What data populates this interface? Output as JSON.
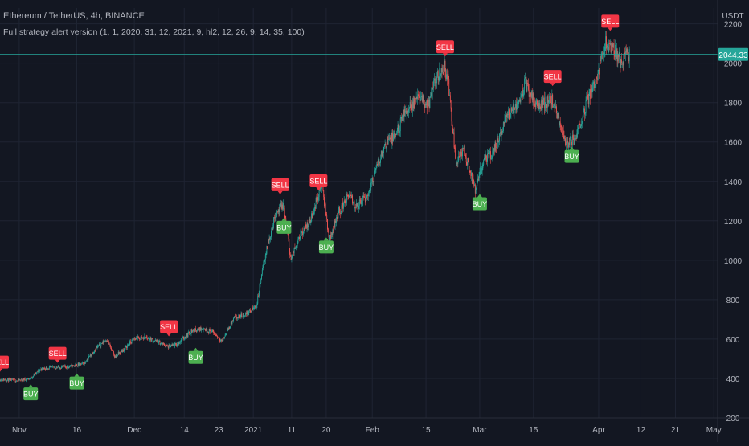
{
  "legend": {
    "symbol_line": "Ethereum / TetherUS, 4h, BINANCE",
    "indicator_line": "Full strategy alert version (1, 1, 2020, 31, 12, 2021, 9, hl2, 12, 26, 9, 14, 35, 100)"
  },
  "currency_label": "USDT",
  "last_price": "2044.33",
  "colors": {
    "background": "#131722",
    "grid": "#1f2433",
    "up": "#26a69a",
    "down": "#ef5350",
    "buy": "#4caf50",
    "sell": "#f23645",
    "axis_text": "#b2b5be",
    "price_line": "#26a69a"
  },
  "chart_data": {
    "type": "candlestick",
    "interval": "4h",
    "x_range": [
      "2020-10-27",
      "2021-05-02"
    ],
    "ylim": [
      200,
      2280
    ],
    "y_ticks": [
      200,
      400,
      600,
      800,
      1000,
      1200,
      1400,
      1600,
      1800,
      2000,
      2200
    ],
    "x_ticks": [
      {
        "label": "Nov",
        "date": "2020-11-01"
      },
      {
        "label": "16",
        "date": "2020-11-16"
      },
      {
        "label": "Dec",
        "date": "2020-12-01"
      },
      {
        "label": "14",
        "date": "2020-12-14"
      },
      {
        "label": "23",
        "date": "2020-12-23"
      },
      {
        "label": "2021",
        "date": "2021-01-01"
      },
      {
        "label": "11",
        "date": "2021-01-11"
      },
      {
        "label": "20",
        "date": "2021-01-20"
      },
      {
        "label": "Feb",
        "date": "2021-02-01"
      },
      {
        "label": "15",
        "date": "2021-02-15"
      },
      {
        "label": "Mar",
        "date": "2021-03-01"
      },
      {
        "label": "15",
        "date": "2021-03-15"
      },
      {
        "label": "Apr",
        "date": "2021-04-01"
      },
      {
        "label": "12",
        "date": "2021-04-12"
      },
      {
        "label": "21",
        "date": "2021-04-21"
      },
      {
        "label": "May",
        "date": "2021-05-01"
      }
    ],
    "price_path": [
      [
        "2020-10-27",
        395
      ],
      [
        "2020-11-01",
        390
      ],
      [
        "2020-11-04",
        400
      ],
      [
        "2020-11-07",
        450
      ],
      [
        "2020-11-10",
        455
      ],
      [
        "2020-11-14",
        460
      ],
      [
        "2020-11-18",
        475
      ],
      [
        "2020-11-21",
        550
      ],
      [
        "2020-11-24",
        600
      ],
      [
        "2020-11-26",
        510
      ],
      [
        "2020-11-28",
        540
      ],
      [
        "2020-12-01",
        600
      ],
      [
        "2020-12-04",
        610
      ],
      [
        "2020-12-08",
        580
      ],
      [
        "2020-12-10",
        560
      ],
      [
        "2020-12-12",
        570
      ],
      [
        "2020-12-16",
        640
      ],
      [
        "2020-12-19",
        655
      ],
      [
        "2020-12-22",
        630
      ],
      [
        "2020-12-24",
        590
      ],
      [
        "2020-12-27",
        700
      ],
      [
        "2020-12-31",
        735
      ],
      [
        "2021-01-02",
        770
      ],
      [
        "2021-01-04",
        1000
      ],
      [
        "2021-01-07",
        1240
      ],
      [
        "2021-01-09",
        1280
      ],
      [
        "2021-01-11",
        1000
      ],
      [
        "2021-01-13",
        1120
      ],
      [
        "2021-01-16",
        1200
      ],
      [
        "2021-01-19",
        1390
      ],
      [
        "2021-01-21",
        1100
      ],
      [
        "2021-01-23",
        1230
      ],
      [
        "2021-01-26",
        1330
      ],
      [
        "2021-01-28",
        1270
      ],
      [
        "2021-01-31",
        1330
      ],
      [
        "2021-02-03",
        1510
      ],
      [
        "2021-02-05",
        1610
      ],
      [
        "2021-02-07",
        1620
      ],
      [
        "2021-02-10",
        1760
      ],
      [
        "2021-02-13",
        1820
      ],
      [
        "2021-02-16",
        1790
      ],
      [
        "2021-02-18",
        1940
      ],
      [
        "2021-02-20",
        1980
      ],
      [
        "2021-02-21",
        1900
      ],
      [
        "2021-02-23",
        1500
      ],
      [
        "2021-02-25",
        1560
      ],
      [
        "2021-02-28",
        1350
      ],
      [
        "2021-03-02",
        1500
      ],
      [
        "2021-03-04",
        1530
      ],
      [
        "2021-03-06",
        1600
      ],
      [
        "2021-03-08",
        1720
      ],
      [
        "2021-03-11",
        1800
      ],
      [
        "2021-03-13",
        1900
      ],
      [
        "2021-03-16",
        1780
      ],
      [
        "2021-03-18",
        1800
      ],
      [
        "2021-03-20",
        1810
      ],
      [
        "2021-03-22",
        1700
      ],
      [
        "2021-03-24",
        1580
      ],
      [
        "2021-03-26",
        1620
      ],
      [
        "2021-03-29",
        1800
      ],
      [
        "2021-04-01",
        1950
      ],
      [
        "2021-04-03",
        2100
      ],
      [
        "2021-04-05",
        2080
      ],
      [
        "2021-04-07",
        2000
      ],
      [
        "2021-04-08",
        2040
      ],
      [
        "2021-04-09",
        2044
      ]
    ],
    "signals": [
      {
        "type": "sell",
        "label": "SELL",
        "date": "2020-10-27",
        "price": 430
      },
      {
        "type": "buy",
        "label": "BUY",
        "date": "2020-11-04",
        "price": 375
      },
      {
        "type": "sell",
        "label": "SELL",
        "date": "2020-11-11",
        "price": 475
      },
      {
        "type": "buy",
        "label": "BUY",
        "date": "2020-11-16",
        "price": 430
      },
      {
        "type": "sell",
        "label": "SELL",
        "date": "2020-12-10",
        "price": 610
      },
      {
        "type": "buy",
        "label": "BUY",
        "date": "2020-12-17",
        "price": 560
      },
      {
        "type": "sell",
        "label": "SELL",
        "date": "2021-01-08",
        "price": 1330
      },
      {
        "type": "buy",
        "label": "BUY",
        "date": "2021-01-09",
        "price": 1220
      },
      {
        "type": "sell",
        "label": "SELL",
        "date": "2021-01-18",
        "price": 1350
      },
      {
        "type": "buy",
        "label": "BUY",
        "date": "2021-01-20",
        "price": 1120
      },
      {
        "type": "sell",
        "label": "SELL",
        "date": "2021-02-20",
        "price": 2030
      },
      {
        "type": "buy",
        "label": "BUY",
        "date": "2021-03-01",
        "price": 1340
      },
      {
        "type": "sell",
        "label": "SELL",
        "date": "2021-03-20",
        "price": 1880
      },
      {
        "type": "buy",
        "label": "BUY",
        "date": "2021-03-25",
        "price": 1580
      },
      {
        "type": "sell",
        "label": "SELL",
        "date": "2021-04-04",
        "price": 2160
      }
    ]
  }
}
